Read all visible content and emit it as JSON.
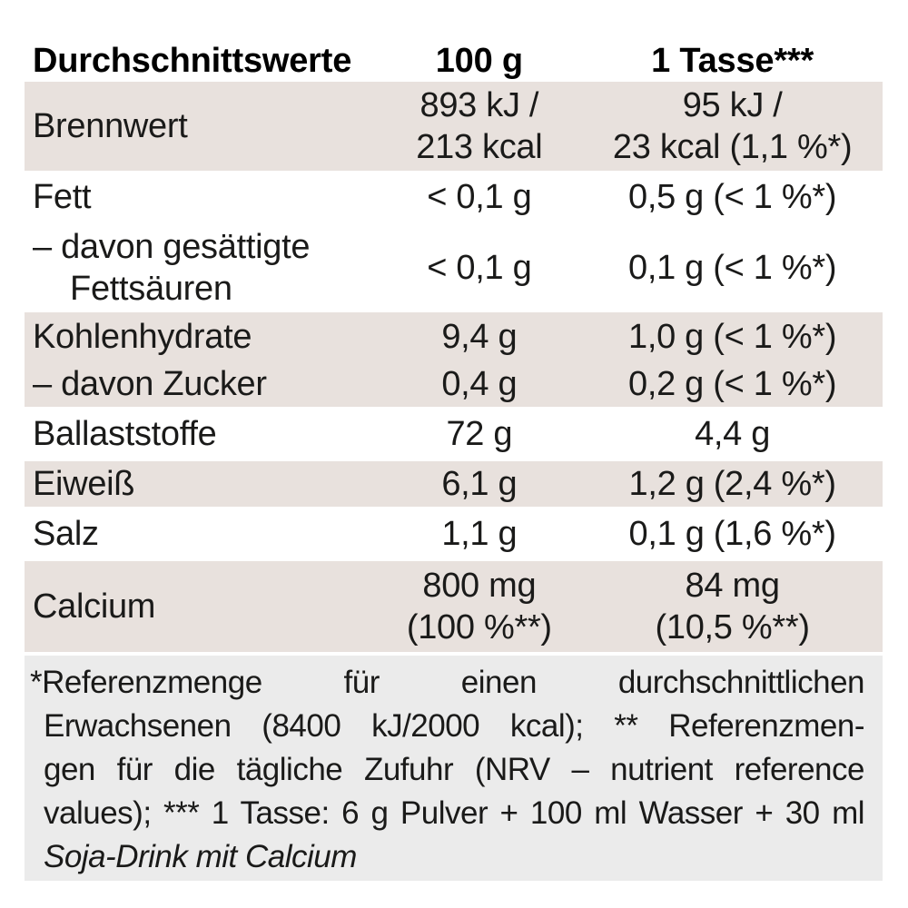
{
  "table": {
    "header": {
      "label": "Durchschnittswerte",
      "col_100g": "100 g",
      "col_tasse": "1 Tasse***"
    },
    "rows": [
      {
        "label": "Brennwert",
        "per_100g": "893 kJ /\n213 kcal",
        "per_tasse": "95 kJ /\n23 kcal (1,1 %*)",
        "shaded": true
      },
      {
        "label": "Fett",
        "per_100g": "< 0,1 g",
        "per_tasse": "0,5 g (< 1 %*)",
        "shaded": false
      },
      {
        "label": "– davon gesättigte\n    Fettsäuren",
        "per_100g": "< 0,1 g",
        "per_tasse": "0,1 g (< 1 %*)",
        "shaded": false
      },
      {
        "label": "Kohlenhydrate",
        "per_100g": "9,4 g",
        "per_tasse": "1,0 g (< 1 %*)",
        "shaded": true
      },
      {
        "label": "– davon Zucker",
        "per_100g": "0,4 g",
        "per_tasse": "0,2 g (< 1 %*)",
        "shaded": true
      },
      {
        "label": "Ballaststoffe",
        "per_100g": "72 g",
        "per_tasse": "4,4 g",
        "shaded": false
      },
      {
        "label": "Eiweiß",
        "per_100g": "6,1 g",
        "per_tasse": "1,2 g (2,4 %*)",
        "shaded": true
      },
      {
        "label": "Salz",
        "per_100g": "1,1 g",
        "per_tasse": "0,1 g (1,6 %*)",
        "shaded": false
      },
      {
        "label": "Calcium",
        "per_100g": "800 mg\n(100 %**)",
        "per_tasse": "84 mg\n(10,5 %**)",
        "shaded": true
      }
    ]
  },
  "footnote": {
    "line1": "*Referenzmenge für einen durchschnittlichen",
    "line2": "Erwachsenen (8400 kJ/2000 kcal); ** Referenzmen-",
    "line3": "gen für die tägliche Zufuhr (NRV – nutrient reference",
    "line4": "values); *** 1 Tasse: 6 g Pulver + 100 ml Wasser + 30 ml",
    "line5_italic": "Soja-Drink mit Calcium"
  },
  "colors": {
    "row_shaded": "#e8e1dd",
    "footnote_bg": "#ebebeb",
    "text": "#1a1a19"
  }
}
